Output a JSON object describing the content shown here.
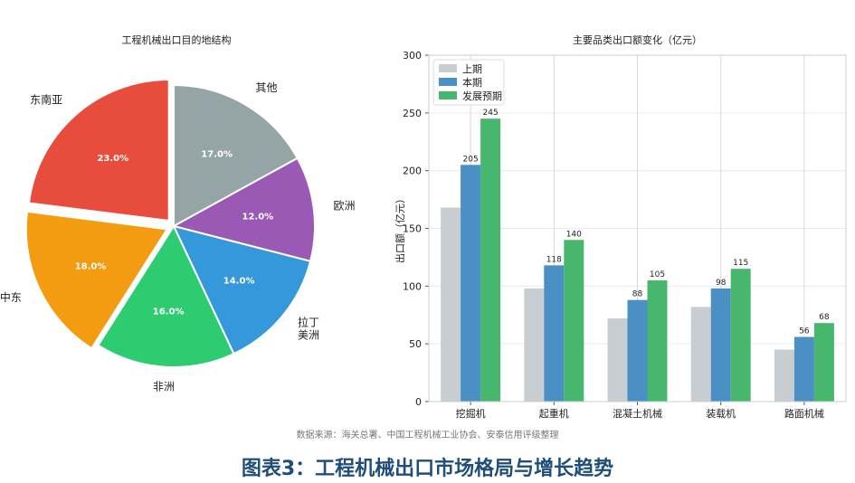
{
  "caption": "图表3：工程机械出口市场格局与增长趋势",
  "source": "数据来源：海关总署、中国工程机械工业协会、安泰信用评级整理",
  "chart_data": [
    {
      "type": "pie",
      "title": "工程机械出口目的地结构",
      "slices": [
        {
          "label": "其他",
          "value": 17.0,
          "value_label": "17.0%",
          "color": "#95a5a6",
          "explode": false
        },
        {
          "label": "欧洲",
          "value": 12.0,
          "value_label": "12.0%",
          "color": "#9b59b6",
          "explode": false
        },
        {
          "label": "拉丁\n美洲",
          "value": 14.0,
          "value_label": "14.0%",
          "color": "#3498db",
          "explode": false
        },
        {
          "label": "非洲",
          "value": 16.0,
          "value_label": "16.0%",
          "color": "#2ecc71",
          "explode": false
        },
        {
          "label": "中东",
          "value": 18.0,
          "value_label": "18.0%",
          "color": "#f39c12",
          "explode": true
        },
        {
          "label": "东南亚",
          "value": 23.0,
          "value_label": "23.0%",
          "color": "#e74c3c",
          "explode": true
        }
      ]
    },
    {
      "type": "bar",
      "title": "主要品类出口额变化（亿元）",
      "ylabel": "出口额（亿元）",
      "xlabel": "",
      "ylim": [
        0,
        300
      ],
      "yticks": [
        0,
        50,
        100,
        150,
        200,
        250,
        300
      ],
      "grid": true,
      "legend_position": "top-left",
      "categories": [
        "挖掘机",
        "起重机",
        "混凝土机械",
        "装载机",
        "路面机械"
      ],
      "series": [
        {
          "name": "上期",
          "color": "#c8cdd1",
          "values": [
            168,
            98,
            72,
            82,
            45
          ],
          "show_labels": false
        },
        {
          "name": "本期",
          "color": "#4a90c4",
          "values": [
            205,
            118,
            88,
            98,
            56
          ],
          "show_labels": true
        },
        {
          "name": "发展预期",
          "color": "#46b76d",
          "values": [
            245,
            140,
            105,
            115,
            68
          ],
          "show_labels": true
        }
      ]
    }
  ]
}
